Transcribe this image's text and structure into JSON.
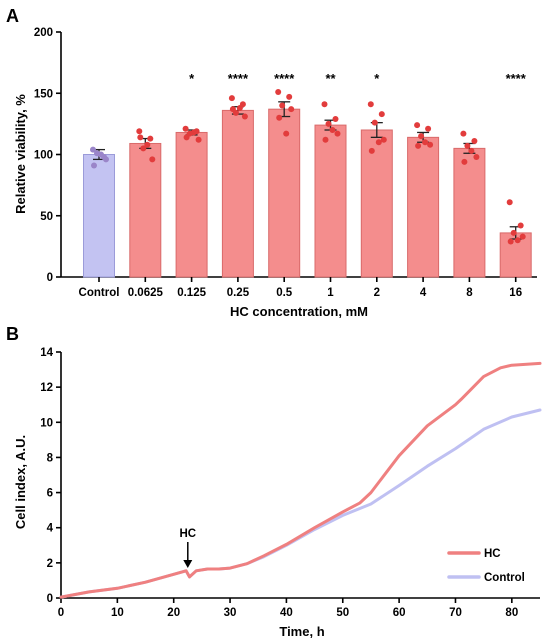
{
  "chart_data": [
    {
      "panel": "A",
      "type": "bar",
      "xlabel": "HC concentration, mM",
      "ylabel": "Relative viability, %",
      "ylim": [
        0,
        200
      ],
      "yticks": [
        0,
        50,
        100,
        150,
        200
      ],
      "categories": [
        "Control",
        "0.0625",
        "0.125",
        "0.25",
        "0.5",
        "1",
        "2",
        "4",
        "8",
        "16"
      ],
      "values": [
        100,
        109,
        118,
        136,
        137,
        124,
        120,
        114,
        105,
        36
      ],
      "sem": [
        4,
        4,
        2,
        3,
        6,
        4,
        6,
        4,
        4,
        5
      ],
      "significance": [
        "",
        "",
        "*",
        "****",
        "****",
        "**",
        "*",
        "",
        "",
        "****"
      ],
      "points": [
        [
          104,
          98,
          101,
          96,
          91,
          100
        ],
        [
          119,
          113,
          105,
          96,
          114,
          108
        ],
        [
          121,
          119,
          117,
          112,
          114,
          118
        ],
        [
          146,
          141,
          134,
          131,
          137,
          138
        ],
        [
          151,
          147,
          140,
          137,
          130,
          117
        ],
        [
          141,
          129,
          125,
          117,
          112,
          120
        ],
        [
          141,
          133,
          126,
          112,
          103,
          110
        ],
        [
          124,
          121,
          115,
          108,
          107,
          110
        ],
        [
          117,
          111,
          107,
          98,
          94,
          103
        ],
        [
          61,
          42,
          36,
          33,
          29,
          30
        ]
      ],
      "colors": {
        "control_bar": "#c3c3f2",
        "control_edge": "#9b9bd9",
        "control_dot": "#9a85c9",
        "treated_bar": "#f48d8d",
        "treated_edge": "#d96a6a",
        "treated_dot": "#e23c3c"
      }
    },
    {
      "panel": "B",
      "type": "line",
      "xlabel": "Time, h",
      "ylabel": "Cell index, A.U.",
      "xlim": [
        0,
        85
      ],
      "ylim": [
        0,
        14
      ],
      "xticks": [
        0,
        10,
        20,
        30,
        40,
        50,
        60,
        70,
        80
      ],
      "yticks": [
        0,
        2,
        4,
        6,
        8,
        10,
        12,
        14
      ],
      "annotation": {
        "text": "HC",
        "x": 22.5
      },
      "legend": "bottom-right",
      "series": [
        {
          "name": "HC",
          "color": "#ef8080",
          "x": [
            0,
            5,
            10,
            15,
            20,
            22.2,
            22.8,
            24,
            26,
            28,
            30,
            33,
            36,
            40,
            45,
            50,
            53,
            55,
            60,
            65,
            70,
            71,
            75,
            78,
            80,
            85
          ],
          "y": [
            0.05,
            0.35,
            0.55,
            0.9,
            1.35,
            1.55,
            1.2,
            1.55,
            1.65,
            1.65,
            1.7,
            1.95,
            2.4,
            3.05,
            4.0,
            4.9,
            5.4,
            6.0,
            8.1,
            9.8,
            11.0,
            11.3,
            12.6,
            13.1,
            13.25,
            13.35
          ]
        },
        {
          "name": "Control",
          "color": "#bfc0f2",
          "x": [
            0,
            5,
            10,
            15,
            20,
            22.2,
            22.8,
            24,
            26,
            28,
            30,
            33,
            36,
            40,
            45,
            50,
            55,
            60,
            65,
            70,
            75,
            80,
            85
          ],
          "y": [
            0.05,
            0.35,
            0.55,
            0.9,
            1.35,
            1.55,
            1.2,
            1.55,
            1.65,
            1.65,
            1.7,
            1.95,
            2.35,
            3.0,
            3.9,
            4.7,
            5.35,
            6.4,
            7.5,
            8.5,
            9.6,
            10.3,
            10.7
          ]
        }
      ]
    }
  ]
}
